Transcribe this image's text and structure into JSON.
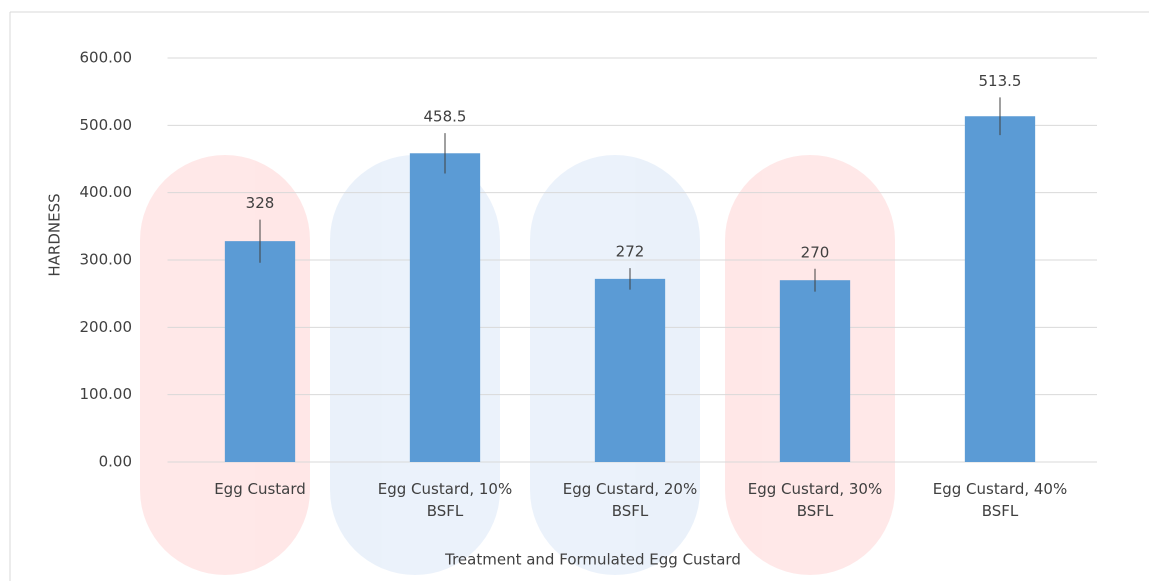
{
  "chart_data": {
    "type": "bar",
    "x_label": "Treatment and Formulated Egg Custard",
    "y_label": "HARDNESS",
    "categories": [
      "Egg Custard",
      "Egg Custard, 10% BSFL",
      "Egg Custard, 20% BSFL",
      "Egg Custard, 30% BSFL",
      "Egg Custard, 40% BSFL"
    ],
    "values": [
      328,
      458.5,
      272,
      270,
      513.5
    ],
    "errors": [
      32,
      30,
      16,
      17,
      28
    ],
    "color": "#5b9bd5",
    "ylim": [
      0,
      600
    ],
    "yticks": [
      {
        "value": 0,
        "label": "0.00"
      },
      {
        "value": 100,
        "label": "100.00"
      },
      {
        "value": 200,
        "label": "200.00"
      },
      {
        "value": 300,
        "label": "300.00"
      },
      {
        "value": 400,
        "label": "400.00"
      },
      {
        "value": 500,
        "label": "500.00"
      },
      {
        "value": 600,
        "label": "600.00"
      }
    ],
    "grid": true
  }
}
